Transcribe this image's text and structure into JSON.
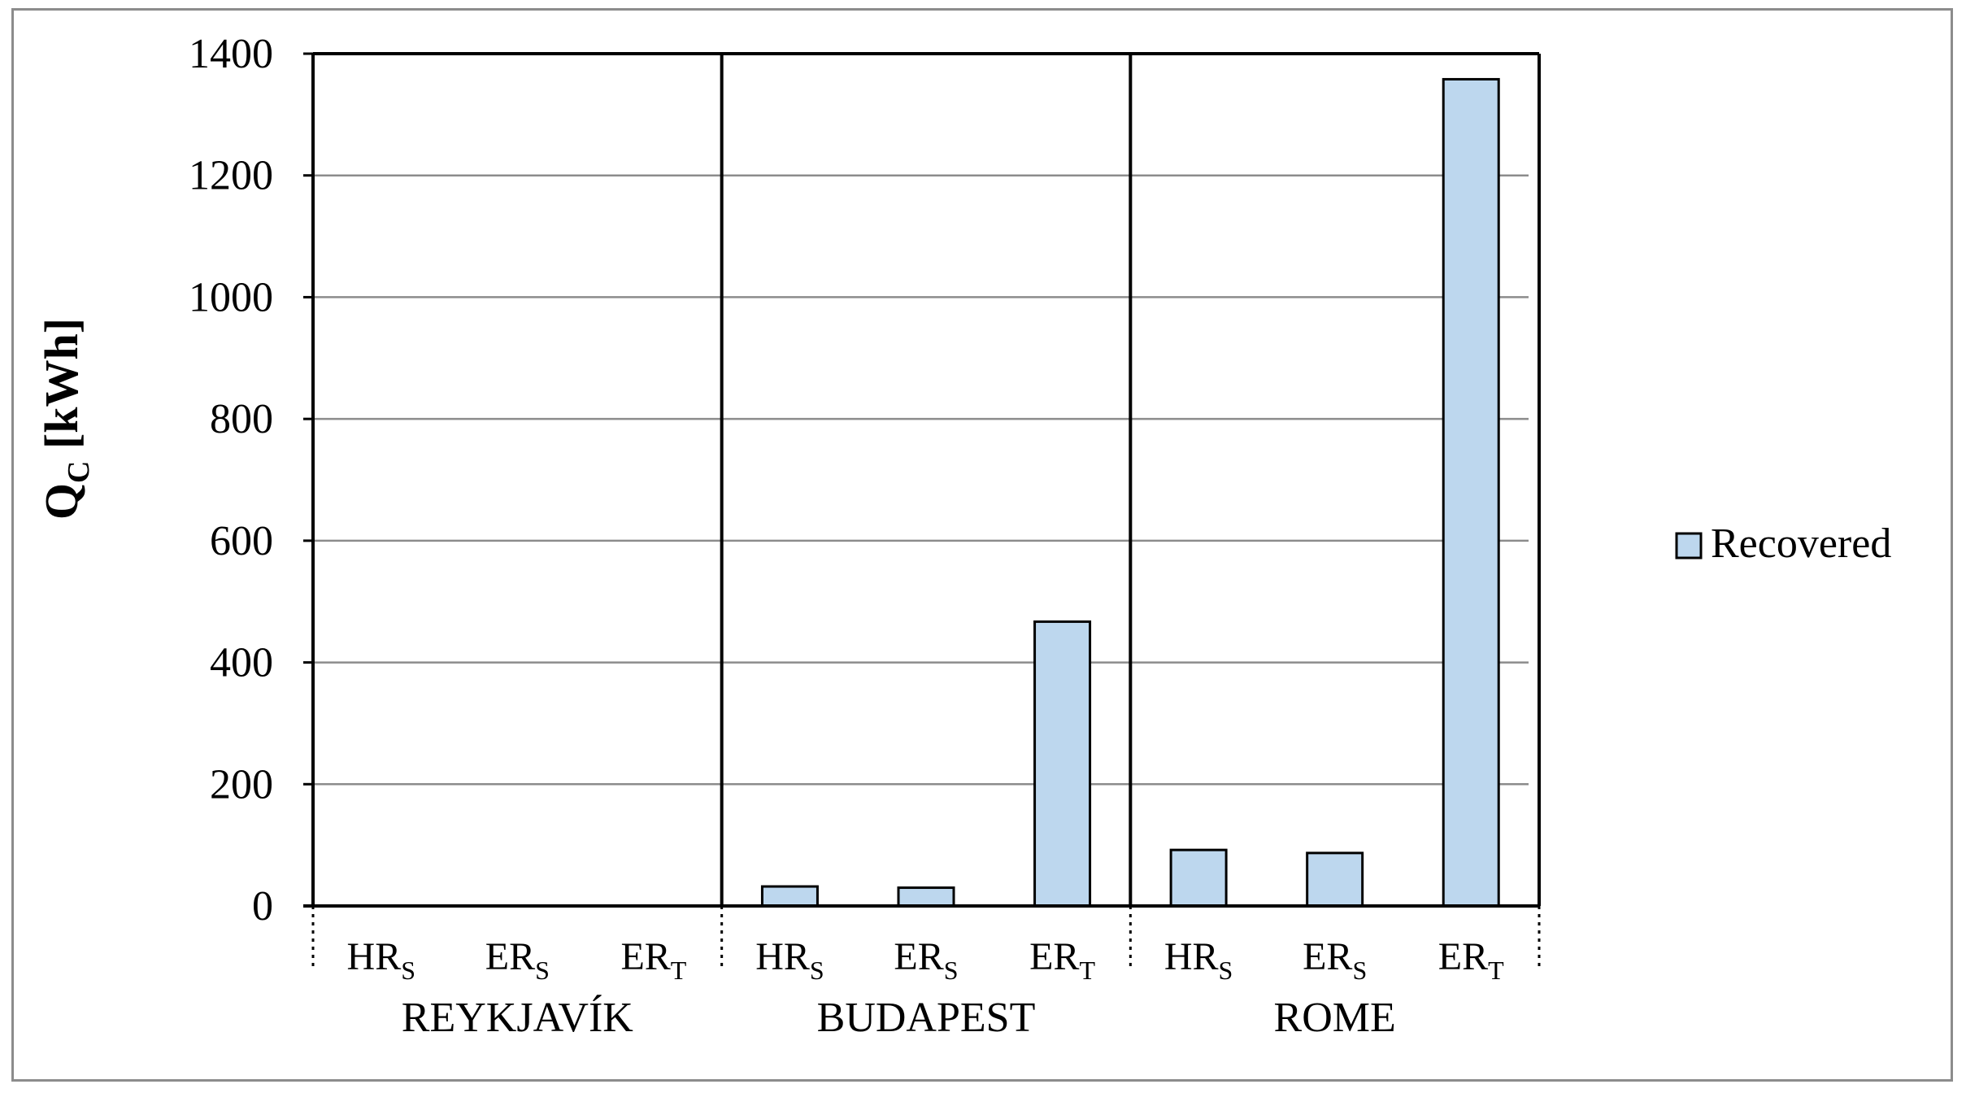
{
  "chart_data": {
    "type": "bar",
    "ylabel": "Q",
    "ylabel_subscript": "C",
    "ylabel_unit": " [kWh]",
    "ylim": [
      0,
      1400
    ],
    "yticks": [
      0,
      200,
      400,
      600,
      800,
      1000,
      1200,
      1400
    ],
    "grid": true,
    "legend_position": "right",
    "groups": [
      "REYKJAVÍK",
      "BUDAPEST",
      "ROME"
    ],
    "categories": [
      {
        "base": "HR",
        "sub": "S"
      },
      {
        "base": "ER",
        "sub": "S"
      },
      {
        "base": "ER",
        "sub": "T"
      },
      {
        "base": "HR",
        "sub": "S"
      },
      {
        "base": "ER",
        "sub": "S"
      },
      {
        "base": "ER",
        "sub": "T"
      },
      {
        "base": "HR",
        "sub": "S"
      },
      {
        "base": "ER",
        "sub": "S"
      },
      {
        "base": "ER",
        "sub": "T"
      }
    ],
    "series": [
      {
        "name": "Recovered",
        "color": "#bdd7ee",
        "values": [
          0,
          0,
          0,
          32,
          30,
          467,
          92,
          87,
          1358
        ]
      }
    ]
  }
}
